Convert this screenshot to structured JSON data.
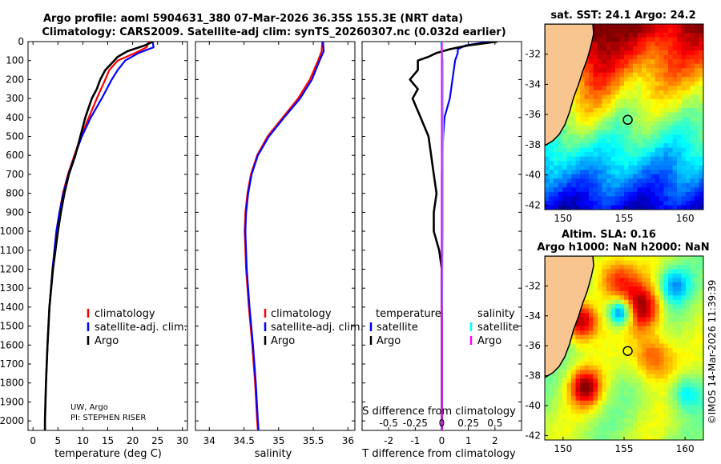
{
  "header": {
    "title_line1": "Argo profile: aoml 5904631_380 07-Mar-2026 36.35S 155.3E (NRT data)",
    "title_line2": "Climatology: CARS2009. Satellite-adj clim: synTS_20260307.nc (0.032d earlier)"
  },
  "credits": {
    "line1": "UW, Argo",
    "line2": "PI: STEPHEN RISER"
  },
  "watermark": "©IMOS 14-Mar-2026 11:39:39",
  "colors": {
    "climatology": "#ff0000",
    "satellite_adj": "#0000ff",
    "argo": "#000000",
    "s_satellite": "#00ffff",
    "s_argo": "#ff00ff",
    "land": "#f8c490"
  },
  "chart_data": [
    {
      "id": "temperature",
      "type": "line",
      "xlabel": "temperature (deg C)",
      "ylabel": "",
      "xlim": [
        -1,
        31
      ],
      "ylim": [
        2050,
        0
      ],
      "x_ticks": [
        0,
        5,
        10,
        15,
        20,
        25,
        30
      ],
      "y_ticks": [
        0,
        100,
        200,
        300,
        400,
        500,
        600,
        700,
        800,
        900,
        1000,
        1100,
        1200,
        1300,
        1400,
        1500,
        1600,
        1700,
        1800,
        1900,
        2000
      ],
      "legend": [
        "climatology",
        "satellite-adj. clim.",
        "Argo"
      ],
      "series": [
        {
          "name": "climatology",
          "depth": [
            0,
            30,
            60,
            100,
            150,
            200,
            300,
            400,
            500,
            600,
            700,
            800,
            900,
            1000,
            1200,
            1400,
            1600,
            1800,
            2000,
            2050
          ],
          "values": [
            23.2,
            22.8,
            20.5,
            17.0,
            15.3,
            14.5,
            12.8,
            11.2,
            9.6,
            8.3,
            7.0,
            6.0,
            5.3,
            4.7,
            3.9,
            3.3,
            2.9,
            2.6,
            2.4,
            2.4
          ]
        },
        {
          "name": "satellite-adj. clim.",
          "depth": [
            0,
            30,
            60,
            100,
            150,
            200,
            300,
            400,
            500,
            600,
            700,
            800,
            900,
            1000,
            1200,
            1400,
            1600,
            1800,
            2000,
            2050
          ],
          "values": [
            24.0,
            24.2,
            21.2,
            18.5,
            17.0,
            15.8,
            13.8,
            11.6,
            9.8,
            8.4,
            7.1,
            6.1,
            5.3,
            4.7,
            3.9,
            3.3,
            2.9,
            2.6,
            2.4,
            2.4
          ]
        },
        {
          "name": "Argo",
          "depth": [
            0,
            20,
            50,
            80,
            100,
            150,
            200,
            250,
            300,
            400,
            500,
            600,
            700,
            800,
            900,
            1000,
            1100,
            1200,
            1400,
            1600,
            1800,
            2000,
            2050
          ],
          "values": [
            24.1,
            22.5,
            19.0,
            17.0,
            16.3,
            14.5,
            13.5,
            12.8,
            11.8,
            10.5,
            9.5,
            8.5,
            7.2,
            6.3,
            5.6,
            5.0,
            4.5,
            4.0,
            3.3,
            2.9,
            2.6,
            2.4,
            2.4
          ]
        }
      ]
    },
    {
      "id": "salinity",
      "type": "line",
      "xlabel": "salinity",
      "xlim": [
        33.8,
        36.1
      ],
      "ylim": [
        2050,
        0
      ],
      "x_ticks": [
        34,
        34.5,
        35,
        35.5,
        36
      ],
      "legend": [
        "climatology",
        "satellite-adj. clim.",
        "Argo"
      ],
      "series": [
        {
          "name": "climatology",
          "depth": [
            0,
            50,
            100,
            200,
            300,
            400,
            500,
            600,
            700,
            800,
            900,
            1000,
            1200,
            1400,
            1600,
            1800,
            2000,
            2050
          ],
          "values": [
            35.63,
            35.62,
            35.57,
            35.45,
            35.28,
            35.06,
            34.84,
            34.69,
            34.6,
            34.55,
            34.52,
            34.51,
            34.53,
            34.57,
            34.62,
            34.66,
            34.69,
            34.7
          ]
        },
        {
          "name": "satellite-adj. clim.",
          "depth": [
            0,
            50,
            100,
            200,
            300,
            400,
            500,
            600,
            700,
            800,
            900,
            1000,
            1200,
            1400,
            1600,
            1800,
            2000,
            2050
          ],
          "values": [
            35.64,
            35.65,
            35.59,
            35.48,
            35.31,
            35.08,
            34.86,
            34.7,
            34.61,
            34.56,
            34.53,
            34.52,
            34.54,
            34.58,
            34.63,
            34.67,
            34.7,
            34.71
          ]
        }
      ]
    },
    {
      "id": "differences",
      "type": "line",
      "xlabel": "T difference from climatology",
      "x2label": "S difference from climatology",
      "xlim": [
        -3.0,
        3.0
      ],
      "ylim": [
        2050,
        0
      ],
      "x_ticks": [
        -2,
        -1,
        0,
        1,
        2
      ],
      "x2_ticks": [
        "-0.5",
        "-0.25",
        "0",
        "0.25",
        "0.5"
      ],
      "legend_temperature_title": "temperature",
      "legend_salinity_title": "salinity",
      "legend": [
        "satellite",
        "Argo",
        "satellite",
        "Argo"
      ],
      "series": [
        {
          "name": "T satellite",
          "depth": [
            0,
            20,
            40,
            60,
            100,
            200,
            300,
            400,
            500,
            700,
            1000,
            2050
          ],
          "values": [
            1.8,
            0.9,
            0.6,
            0.6,
            0.5,
            0.4,
            0.3,
            0.1,
            0.05,
            0.0,
            0.0,
            0.0
          ]
        },
        {
          "name": "T Argo",
          "depth": [
            0,
            20,
            40,
            60,
            80,
            100,
            150,
            200,
            250,
            300,
            400,
            500,
            600,
            700,
            800,
            900,
            1000,
            1100,
            1200,
            1400,
            1600,
            1800,
            2000,
            2050
          ],
          "values": [
            2.1,
            1.0,
            0.3,
            -0.2,
            -0.5,
            -0.9,
            -0.9,
            -1.2,
            -0.9,
            -1.1,
            -0.8,
            -0.5,
            -0.4,
            -0.3,
            -0.2,
            -0.3,
            -0.3,
            -0.1,
            0.0,
            0.0,
            0.0,
            0.0,
            0.0,
            0.0
          ]
        },
        {
          "name": "S satellite",
          "depth": [
            0,
            50,
            100,
            400,
            700,
            1000,
            1500,
            2050
          ],
          "values": [
            -0.01,
            0.0,
            0.01,
            0.01,
            0.01,
            0.01,
            0.0,
            0.0
          ]
        },
        {
          "name": "S Argo",
          "depth": [
            0,
            2050
          ],
          "values": [
            0.0,
            0.0
          ]
        }
      ]
    },
    {
      "id": "sst_map",
      "type": "heatmap",
      "title": "sat. SST: 24.1 Argo: 24.2",
      "lon_range": [
        148.5,
        161.5
      ],
      "lat_range": [
        -42.3,
        -30.0
      ],
      "x_ticks": [
        150,
        155,
        160
      ],
      "y_ticks": [
        -32,
        -34,
        -36,
        -38,
        -40,
        -42
      ],
      "marker": {
        "lon": 155.3,
        "lat": -36.35
      }
    },
    {
      "id": "sla_map",
      "type": "heatmap",
      "title_line1": "Altim. SLA: 0.16",
      "title_line2": "Argo h1000: NaN h2000: NaN",
      "lon_range": [
        148.5,
        161.5
      ],
      "lat_range": [
        -42.3,
        -30.0
      ],
      "x_ticks": [
        150,
        155,
        160
      ],
      "y_ticks": [
        -32,
        -34,
        -36,
        -38,
        -40,
        -42
      ],
      "marker": {
        "lon": 155.3,
        "lat": -36.35
      }
    }
  ]
}
